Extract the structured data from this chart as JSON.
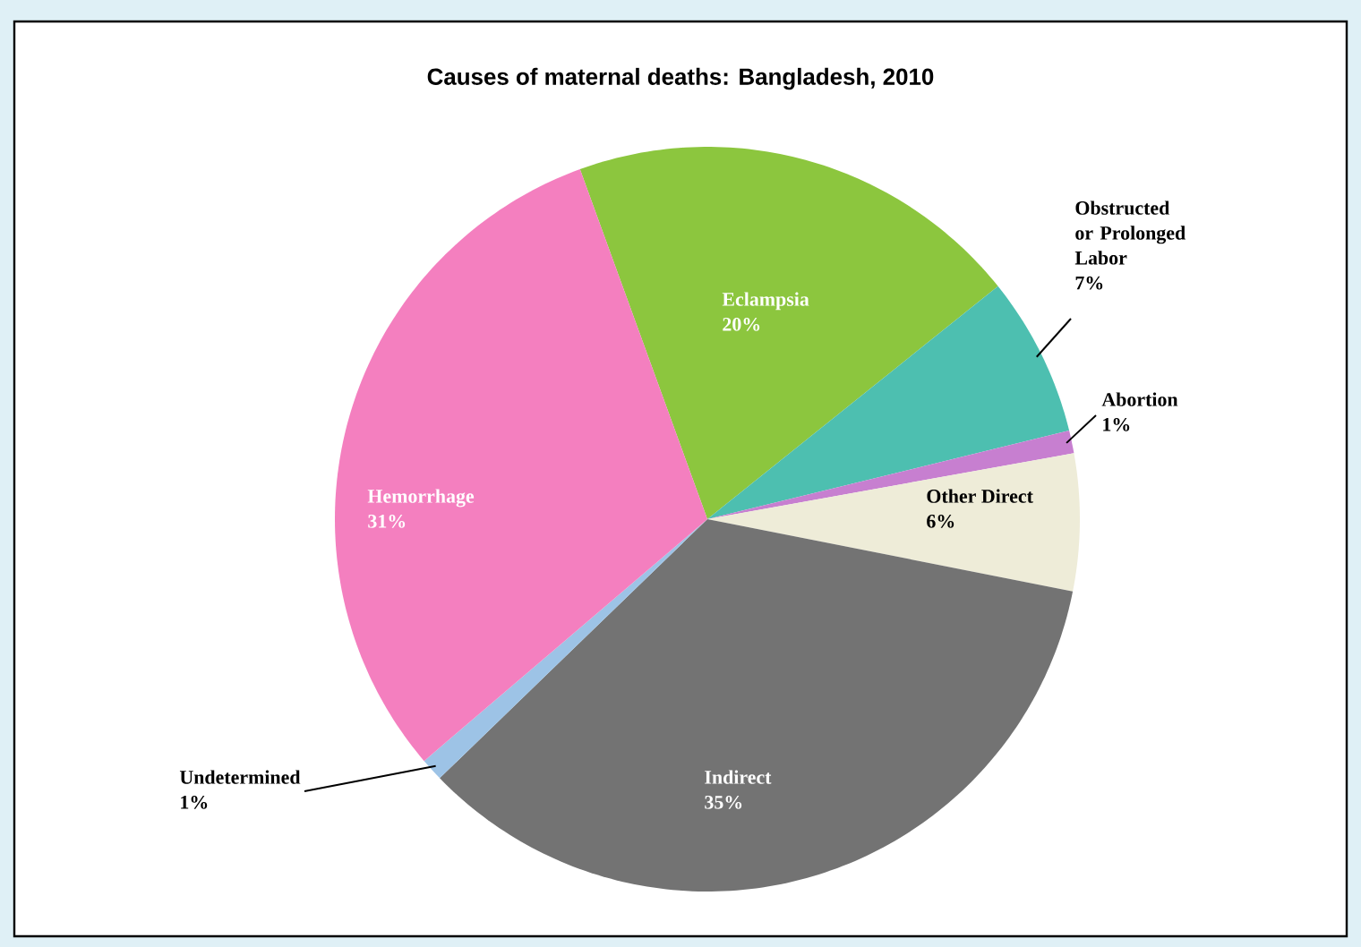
{
  "chart_data": {
    "type": "pie",
    "title": "Causes of maternal deaths: Bangladesh, 2010",
    "categories": [
      "Eclampsia",
      "Obstructed or Prolonged Labor",
      "Abortion",
      "Other Direct",
      "Indirect",
      "Undetermined",
      "Hemorrhage"
    ],
    "values": [
      20,
      7,
      1,
      6,
      35,
      1,
      31
    ],
    "value_labels": [
      "20%",
      "7%",
      "1%",
      "6%",
      "35%",
      "1%",
      "31%"
    ],
    "colors": [
      "#8cc63e",
      "#4dbfb0",
      "#c77fd0",
      "#eeecd8",
      "#737373",
      "#9dc3e6",
      "#f47fbf"
    ]
  }
}
